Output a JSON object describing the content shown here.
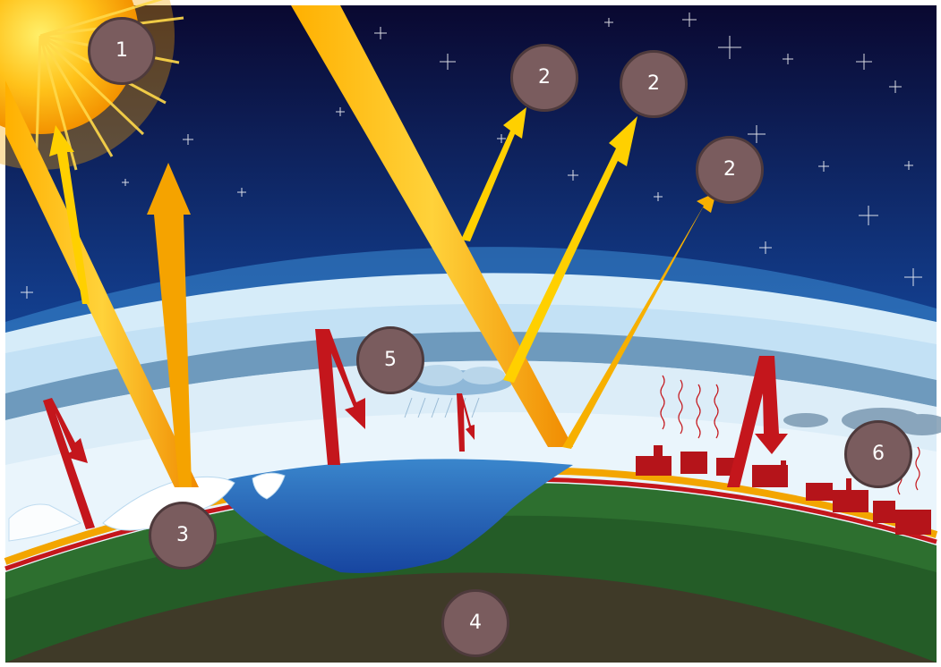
{
  "diagram": {
    "markers": [
      {
        "id": "b1",
        "label": "1"
      },
      {
        "id": "b2a",
        "label": "2"
      },
      {
        "id": "b2b",
        "label": "2"
      },
      {
        "id": "b2c",
        "label": "2"
      },
      {
        "id": "b3",
        "label": "3"
      },
      {
        "id": "b4",
        "label": "4"
      },
      {
        "id": "b5",
        "label": "5"
      },
      {
        "id": "b6",
        "label": "6"
      }
    ]
  },
  "colors": {
    "sky_top": "#0a0830",
    "sky_bottom": "#2a77c9",
    "sun": "#f5a800",
    "solar_beam": "#f7a800",
    "reflected_ray": "#f9d41a",
    "infrared_arrow": "#c4161c",
    "atmosphere_light": "#d8ecf8",
    "atmosphere_band": "#5f8db3",
    "surface_line": "#f3a500",
    "ocean": "#1f5fae",
    "land": "#2d6f2f",
    "soil": "#3f3a28",
    "badge": "#7a5c5e"
  }
}
